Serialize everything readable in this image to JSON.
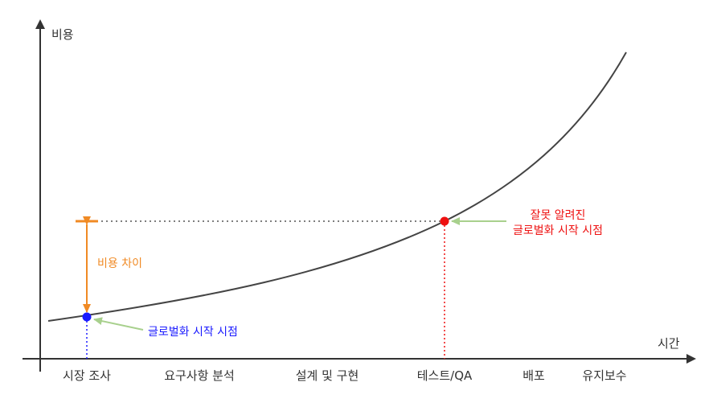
{
  "axes": {
    "y_label": "비용",
    "x_label": "시간"
  },
  "stages": [
    "시장 조사",
    "요구사항 분석",
    "설계 및 구현",
    "테스트/QA",
    "배포",
    "유지보수"
  ],
  "annotations": {
    "cost_gap_label": "비용 차이",
    "early_point_label": "글로벌화 시작 시점",
    "late_point_label_line1": "잘못 알려진",
    "late_point_label_line2": "글로벌화 시작 시점"
  },
  "colors": {
    "curve": "#444444",
    "axis": "#333333",
    "early_point": "#1a1aff",
    "late_point": "#ee1111",
    "cost_gap": "#f08a24",
    "pointer_arrow": "#a8d08d",
    "dotted_guide": "#555555"
  }
}
